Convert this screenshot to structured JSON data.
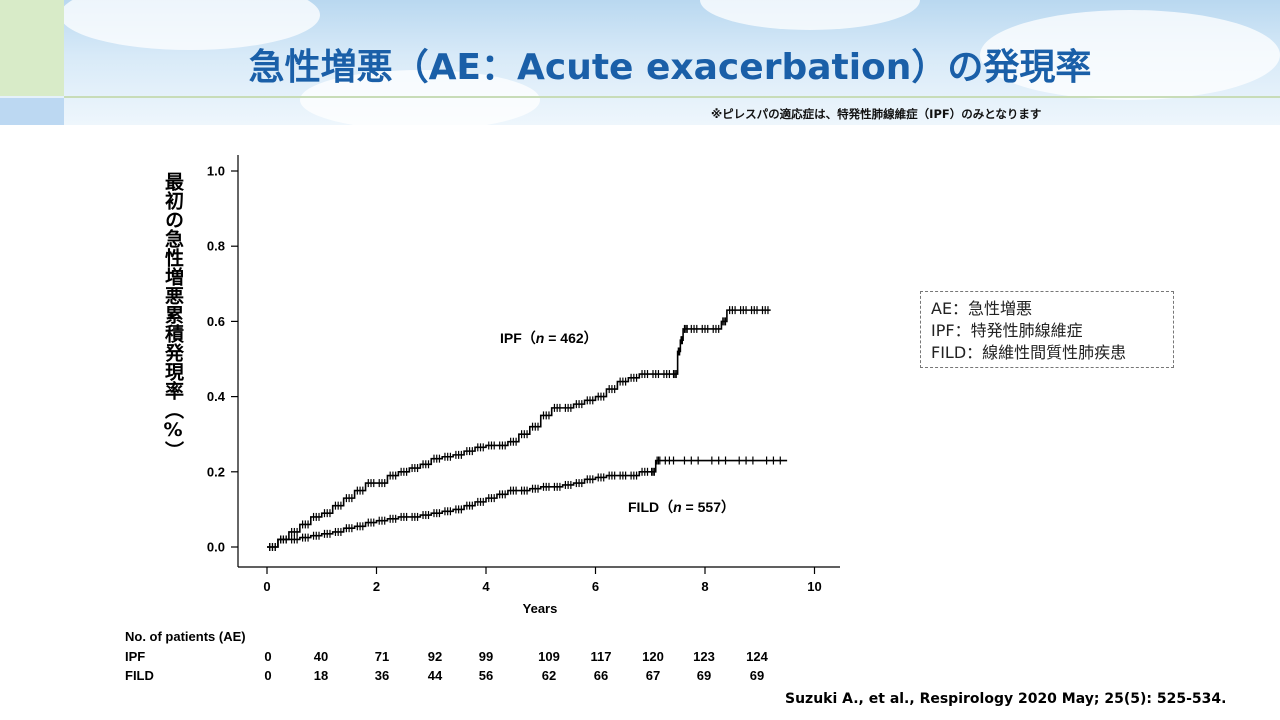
{
  "header": {
    "title": "急性増悪（AE：Acute exacerbation）の発現率",
    "note": "※ピレスパの適応症は、特発性肺線維症（IPF）のみとなります"
  },
  "legend_box": {
    "lines": [
      "AE：急性増悪",
      "IPF：特発性肺線維症",
      "FILD：線維性間質性肺疾患"
    ]
  },
  "risk_table": {
    "title": "No. of patients (AE)",
    "rows": [
      {
        "label": "IPF",
        "values": [
          "0",
          "40",
          "71",
          "92",
          "99",
          "109",
          "117",
          "120",
          "123",
          "124"
        ]
      },
      {
        "label": "FILD",
        "values": [
          "0",
          "18",
          "36",
          "44",
          "56",
          "62",
          "66",
          "67",
          "69",
          "69"
        ]
      }
    ]
  },
  "citation": "Suzuki A., et al., Respirology 2020 May; 25(5): 525-534.",
  "colors": {
    "title": "#1a5fa8",
    "line": "#000000"
  },
  "chart_data": {
    "type": "line",
    "title": "",
    "xlabel": "Years",
    "ylabel": "最初の急性増悪累積発現率（%）",
    "xlim": [
      0,
      10
    ],
    "ylim": [
      0,
      1.0
    ],
    "x_ticks": [
      0,
      2,
      4,
      6,
      8,
      10
    ],
    "y_ticks": [
      0.0,
      0.2,
      0.4,
      0.6,
      0.8,
      1.0
    ],
    "y_tick_labels": [
      "0.0",
      "0.2",
      "0.4",
      "0.6",
      "0.8",
      "1.0"
    ],
    "grid": false,
    "series": [
      {
        "name": "IPF (n = 462)",
        "label_prefix": "IPF（",
        "label_n": "n",
        "label_suffix": " = 462）",
        "x": [
          0,
          0.2,
          0.4,
          0.6,
          0.8,
          1.0,
          1.2,
          1.4,
          1.6,
          1.8,
          2.0,
          2.2,
          2.4,
          2.6,
          2.8,
          3.0,
          3.2,
          3.4,
          3.6,
          3.8,
          4.0,
          4.2,
          4.4,
          4.6,
          4.8,
          5.0,
          5.2,
          5.4,
          5.6,
          5.8,
          6.0,
          6.2,
          6.4,
          6.6,
          6.8,
          7.0,
          7.2,
          7.4,
          7.5,
          7.55,
          7.6,
          7.7,
          7.9,
          8.1,
          8.3,
          8.4,
          8.6,
          8.8,
          9.0,
          9.2
        ],
        "y": [
          0,
          0.02,
          0.04,
          0.06,
          0.08,
          0.09,
          0.11,
          0.13,
          0.15,
          0.17,
          0.17,
          0.19,
          0.2,
          0.21,
          0.22,
          0.235,
          0.24,
          0.245,
          0.255,
          0.265,
          0.27,
          0.27,
          0.28,
          0.3,
          0.32,
          0.35,
          0.37,
          0.37,
          0.38,
          0.39,
          0.4,
          0.42,
          0.44,
          0.45,
          0.46,
          0.46,
          0.46,
          0.46,
          0.52,
          0.55,
          0.58,
          0.58,
          0.58,
          0.58,
          0.6,
          0.63,
          0.63,
          0.63,
          0.63,
          0.63
        ]
      },
      {
        "name": "FILD (n = 557)",
        "label_prefix": "FILD（",
        "label_n": "n",
        "label_suffix": " = 557）",
        "x": [
          0,
          0.2,
          0.4,
          0.6,
          0.8,
          1.0,
          1.2,
          1.4,
          1.6,
          1.8,
          2.0,
          2.2,
          2.4,
          2.6,
          2.8,
          3.0,
          3.2,
          3.4,
          3.6,
          3.8,
          4.0,
          4.2,
          4.4,
          4.6,
          4.8,
          5.0,
          5.2,
          5.4,
          5.6,
          5.8,
          6.0,
          6.2,
          6.4,
          6.6,
          6.8,
          7.0,
          7.1,
          7.2,
          7.5,
          8.0,
          8.5,
          9.0,
          9.5
        ],
        "y": [
          0,
          0.02,
          0.02,
          0.025,
          0.03,
          0.035,
          0.04,
          0.05,
          0.055,
          0.065,
          0.07,
          0.075,
          0.08,
          0.08,
          0.085,
          0.09,
          0.095,
          0.1,
          0.11,
          0.12,
          0.13,
          0.14,
          0.15,
          0.15,
          0.155,
          0.16,
          0.16,
          0.165,
          0.17,
          0.18,
          0.185,
          0.19,
          0.19,
          0.19,
          0.2,
          0.2,
          0.23,
          0.23,
          0.23,
          0.23,
          0.23,
          0.23,
          0.23
        ]
      }
    ]
  }
}
